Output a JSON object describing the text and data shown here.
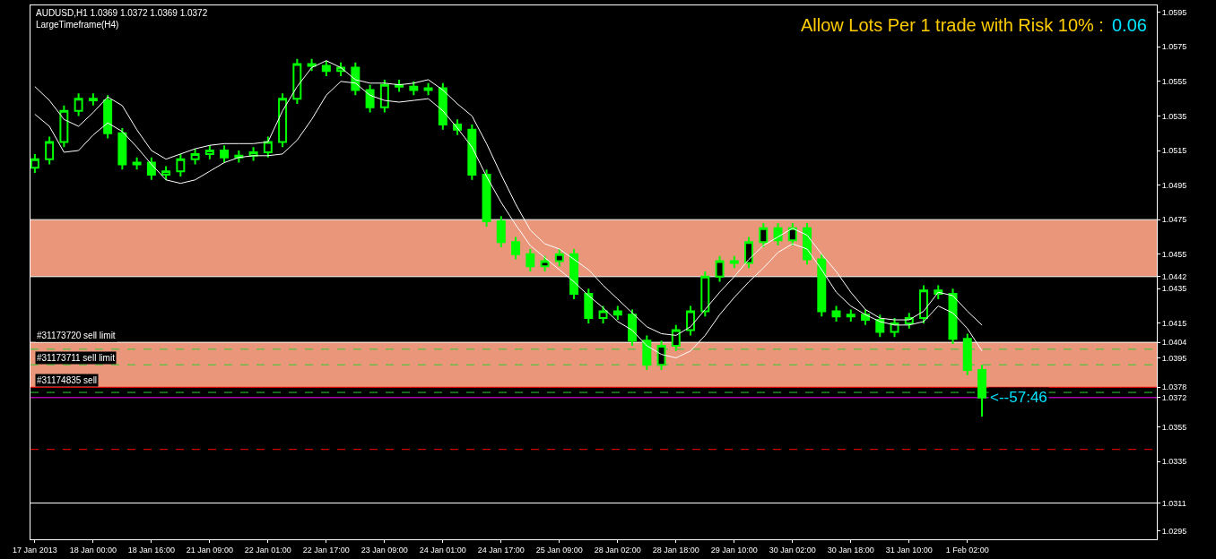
{
  "chart_data": {
    "type": "candlestick",
    "title": "AUDUSD,H1 1.0369 1.0372 1.0369 1.0372",
    "subtitle": "LargeTimeframe(H4)",
    "annotations": [
      "Allow Lots Per 1 trade with Risk 10% :",
      "0.06",
      "<--57:46"
    ],
    "color": "#00ff00",
    "categories": [
      "17 Jan 2013",
      null,
      null,
      null,
      "18 Jan 00:00",
      null,
      null,
      null,
      "18 Jan 16:00",
      null,
      null,
      null,
      "21 Jan 09:00",
      null,
      null,
      null,
      "22 Jan 01:00",
      null,
      null,
      null,
      "22 Jan 17:00",
      null,
      null,
      null,
      "23 Jan 09:00",
      null,
      null,
      null,
      "24 Jan 01:00",
      null,
      null,
      null,
      "24 Jan 17:00",
      null,
      null,
      null,
      "25 Jan 09:00",
      null,
      null,
      null,
      "28 Jan 02:00",
      null,
      null,
      null,
      "28 Jan 18:00",
      null,
      null,
      null,
      "29 Jan 10:00",
      null,
      null,
      null,
      "30 Jan 02:00",
      null,
      null,
      null,
      "30 Jan 18:00",
      null,
      null,
      null,
      "31 Jan 10:00",
      null,
      null,
      null,
      "1 Feb 02:00",
      null
    ],
    "ohlc": [
      [
        1.0505,
        1.0513,
        1.0502,
        1.051
      ],
      [
        1.051,
        1.0523,
        1.0507,
        1.052
      ],
      [
        1.052,
        1.0541,
        1.0517,
        1.0538
      ],
      [
        1.0538,
        1.0548,
        1.0535,
        1.0545
      ],
      [
        1.0545,
        1.0548,
        1.0541,
        1.0544
      ],
      [
        1.0544,
        1.0547,
        1.0522,
        1.0525
      ],
      [
        1.0525,
        1.0528,
        1.0504,
        1.0507
      ],
      [
        1.0507,
        1.0511,
        1.0504,
        1.0508
      ],
      [
        1.0508,
        1.0511,
        1.0498,
        1.0501
      ],
      [
        1.0501,
        1.0506,
        1.0498,
        1.0503
      ],
      [
        1.0503,
        1.0513,
        1.05,
        1.051
      ],
      [
        1.051,
        1.0516,
        1.0507,
        1.0513
      ],
      [
        1.0513,
        1.0518,
        1.051,
        1.0515
      ],
      [
        1.0515,
        1.0518,
        1.0508,
        1.0511
      ],
      [
        1.0511,
        1.0515,
        1.0508,
        1.0512
      ],
      [
        1.0512,
        1.0517,
        1.0509,
        1.0514
      ],
      [
        1.0514,
        1.0523,
        1.0511,
        1.052
      ],
      [
        1.052,
        1.0548,
        1.0517,
        1.0545
      ],
      [
        1.0545,
        1.0568,
        1.0542,
        1.0565
      ],
      [
        1.0565,
        1.0568,
        1.0561,
        1.0564
      ],
      [
        1.0564,
        1.0567,
        1.0558,
        1.0561
      ],
      [
        1.0561,
        1.0566,
        1.0558,
        1.0563
      ],
      [
        1.0563,
        1.0566,
        1.0547,
        1.055
      ],
      [
        1.055,
        1.0553,
        1.0537,
        1.054
      ],
      [
        1.054,
        1.0556,
        1.0537,
        1.0553
      ],
      [
        1.0553,
        1.0556,
        1.0549,
        1.0552
      ],
      [
        1.0552,
        1.0555,
        1.0547,
        1.055
      ],
      [
        1.055,
        1.0554,
        1.0547,
        1.0551
      ],
      [
        1.0551,
        1.0554,
        1.0527,
        1.053
      ],
      [
        1.053,
        1.0533,
        1.0524,
        1.0527
      ],
      [
        1.0527,
        1.053,
        1.0498,
        1.0501
      ],
      [
        1.0501,
        1.0504,
        1.0471,
        1.0474
      ],
      [
        1.0474,
        1.0477,
        1.0459,
        1.0462
      ],
      [
        1.0462,
        1.0465,
        1.0452,
        1.0455
      ],
      [
        1.0455,
        1.0458,
        1.0445,
        1.0448
      ],
      [
        1.0448,
        1.0454,
        1.0445,
        1.0451
      ],
      [
        1.0451,
        1.0458,
        1.0448,
        1.0455
      ],
      [
        1.0455,
        1.0458,
        1.0429,
        1.0432
      ],
      [
        1.0432,
        1.0435,
        1.0415,
        1.0418
      ],
      [
        1.0418,
        1.0425,
        1.0415,
        1.0422
      ],
      [
        1.0422,
        1.0425,
        1.0417,
        1.042
      ],
      [
        1.042,
        1.0423,
        1.0402,
        1.0405
      ],
      [
        1.0405,
        1.0408,
        1.0388,
        1.0391
      ],
      [
        1.0391,
        1.0405,
        1.0388,
        1.0402
      ],
      [
        1.0402,
        1.0414,
        1.0399,
        1.0411
      ],
      [
        1.0411,
        1.0425,
        1.0408,
        1.0422
      ],
      [
        1.0422,
        1.0445,
        1.0419,
        1.0442
      ],
      [
        1.0442,
        1.0454,
        1.0439,
        1.0451
      ],
      [
        1.0451,
        1.0454,
        1.0447,
        1.045
      ],
      [
        1.045,
        1.0465,
        1.0447,
        1.0462
      ],
      [
        1.0462,
        1.0473,
        1.0459,
        1.047
      ],
      [
        1.047,
        1.0473,
        1.046,
        1.0463
      ],
      [
        1.0463,
        1.0473,
        1.046,
        1.047
      ],
      [
        1.047,
        1.0473,
        1.0449,
        1.0452
      ],
      [
        1.0452,
        1.0455,
        1.0419,
        1.0422
      ],
      [
        1.0422,
        1.0425,
        1.0416,
        1.0419
      ],
      [
        1.0419,
        1.0423,
        1.0416,
        1.042
      ],
      [
        1.042,
        1.0423,
        1.0414,
        1.0417
      ],
      [
        1.0417,
        1.042,
        1.0407,
        1.041
      ],
      [
        1.041,
        1.0418,
        1.0407,
        1.0415
      ],
      [
        1.0415,
        1.0421,
        1.0412,
        1.0418
      ],
      [
        1.0418,
        1.0437,
        1.0415,
        1.0434
      ],
      [
        1.0434,
        1.0437,
        1.0429,
        1.0432
      ],
      [
        1.0432,
        1.0435,
        1.0403,
        1.0406
      ],
      [
        1.0406,
        1.0409,
        1.0385,
        1.0388
      ],
      [
        1.0388,
        1.0391,
        1.0361,
        1.0372
      ]
    ],
    "series": [
      {
        "type": "line",
        "color": "#ffffff",
        "values": [
          1.0552,
          1.0544,
          1.0533,
          1.0529,
          1.0537,
          1.0546,
          1.0541,
          1.0527,
          1.0515,
          1.051,
          1.0513,
          1.0516,
          1.0518,
          1.0519,
          1.0519,
          1.0519,
          1.052,
          1.0538,
          1.0552,
          1.0563,
          1.0567,
          1.0563,
          1.0556,
          1.0554,
          1.0554,
          1.0553,
          1.0554,
          1.0556,
          1.055,
          1.0542,
          1.0535,
          1.0519,
          1.0501,
          1.0484,
          1.0469,
          1.0461,
          1.0458,
          1.0452,
          1.0446,
          1.0437,
          1.0429,
          1.0421,
          1.0413,
          1.0409,
          1.0408,
          1.0413,
          1.0423,
          1.0433,
          1.0442,
          1.0452,
          1.046,
          1.0465,
          1.047,
          1.0466,
          1.0455,
          1.0445,
          1.0433,
          1.0423,
          1.0418,
          1.0417,
          1.0417,
          1.0422,
          1.0433,
          1.0431,
          1.0422,
          1.0414
        ]
      },
      {
        "type": "line",
        "color": "#ffffff",
        "values": [
          1.0536,
          1.0529,
          1.0514,
          1.0515,
          1.0524,
          1.0531,
          1.0526,
          1.0517,
          1.0507,
          1.0498,
          1.0496,
          1.0498,
          1.0503,
          1.0508,
          1.0511,
          1.0512,
          1.0512,
          1.0513,
          1.0521,
          1.0533,
          1.0547,
          1.0555,
          1.0554,
          1.0547,
          1.0544,
          1.0543,
          1.0544,
          1.0545,
          1.0538,
          1.0528,
          1.0517,
          1.05,
          1.0485,
          1.0472,
          1.046,
          1.0453,
          1.0446,
          1.0439,
          1.0431,
          1.0424,
          1.0416,
          1.0411,
          1.0402,
          1.0397,
          1.0395,
          1.0399,
          1.0408,
          1.042,
          1.043,
          1.0439,
          1.0447,
          1.0456,
          1.0461,
          1.0458,
          1.0446,
          1.0433,
          1.0425,
          1.042,
          1.0416,
          1.0414,
          1.0414,
          1.0416,
          1.0425,
          1.0421,
          1.0412,
          1.0399
        ]
      }
    ],
    "ylim": [
      1.029,
      1.0599
    ],
    "yticks": [
      1.0595,
      1.0575,
      1.0555,
      1.0535,
      1.0515,
      1.0495,
      1.0475,
      1.0455,
      1.0442,
      1.0435,
      1.0415,
      1.0404,
      1.0395,
      1.0378,
      1.0372,
      1.0355,
      1.0335,
      1.0311,
      1.0295
    ],
    "bands": [
      {
        "axis": "y",
        "from": 1.0442,
        "to": 1.0475,
        "color": "#e9967a"
      },
      {
        "axis": "y",
        "from": 1.0378,
        "to": 1.0404,
        "color": "#e9967a"
      }
    ],
    "ref_lines": [
      {
        "axis": "y",
        "value": 1.0475,
        "color": "#ffffff"
      },
      {
        "axis": "y",
        "value": 1.0442,
        "color": "#ffffff"
      },
      {
        "axis": "y",
        "value": 1.0404,
        "label": "#31173720 sell limit",
        "color": "#ffffff"
      },
      {
        "axis": "y",
        "value": 1.04,
        "color": "#32cd32",
        "line_style": "dashed"
      },
      {
        "axis": "y",
        "value": 1.0391,
        "label": "#31173711 sell limit",
        "color": "#32cd32",
        "line_style": "dashed"
      },
      {
        "axis": "y",
        "value": 1.0378,
        "label": "#31174835 sell",
        "color": "#ff0000"
      },
      {
        "axis": "y",
        "value": 1.0375,
        "color": "#32cd32",
        "line_style": "dashed"
      },
      {
        "axis": "y",
        "value": 1.0372,
        "color": "#ff00ff"
      },
      {
        "axis": "y",
        "value": 1.0342,
        "color": "#ff0000",
        "line_style": "dashed"
      },
      {
        "axis": "y",
        "value": 1.0311,
        "color": "#ffffff"
      }
    ],
    "grid": false
  }
}
